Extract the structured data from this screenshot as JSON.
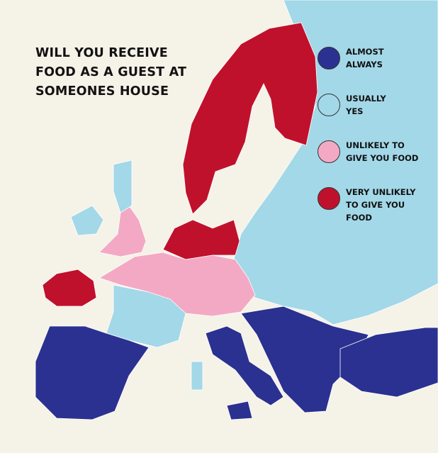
{
  "title_lines": [
    "WILL YOU RECEIVE",
    "FOOD AS A GUEST AT",
    "SOMEONES HOUSE"
  ],
  "colors": {
    "background": "#f5f2e8",
    "almost_always": "#2b3190",
    "usually_yes": "#a3d8e8",
    "unlikely": "#f3a9c4",
    "very_unlikely": "#c0112c",
    "border": "#ffffff"
  },
  "legend": [
    {
      "category": "almost_always",
      "label": "ALMOST\nALWAYS",
      "color": "#2b3190"
    },
    {
      "category": "usually_yes",
      "label": "USUALLY\nYES",
      "color": "#a3d8e8"
    },
    {
      "category": "unlikely",
      "label": "UNLIKELY TO\nGIVE YOU FOOD",
      "color": "#f3a9c4"
    },
    {
      "category": "very_unlikely",
      "label": "VERY UNLIKELY\nTO GIVE YOU\nFOOD",
      "color": "#c0112c"
    }
  ],
  "regions": [
    {
      "name": "Eastern Europe and Russia",
      "category": "usually_yes"
    },
    {
      "name": "Scandinavia and Finland",
      "category": "very_unlikely"
    },
    {
      "name": "Germany, Poland and Denmark",
      "category": "very_unlikely"
    },
    {
      "name": "Iceland",
      "category": "very_unlikely"
    },
    {
      "name": "England and Wales",
      "category": "unlikely"
    },
    {
      "name": "Scotland",
      "category": "usually_yes"
    },
    {
      "name": "Ireland",
      "category": "usually_yes"
    },
    {
      "name": "Benelux, northern France, Switzerland and Austria",
      "category": "unlikely"
    },
    {
      "name": "Southern France",
      "category": "usually_yes"
    },
    {
      "name": "Iberia",
      "category": "almost_always"
    },
    {
      "name": "Italy",
      "category": "almost_always"
    },
    {
      "name": "Sicily",
      "category": "almost_always"
    },
    {
      "name": "Sardinia",
      "category": "usually_yes"
    },
    {
      "name": "Balkans and Greece",
      "category": "almost_always"
    },
    {
      "name": "Turkey",
      "category": "almost_always"
    }
  ]
}
